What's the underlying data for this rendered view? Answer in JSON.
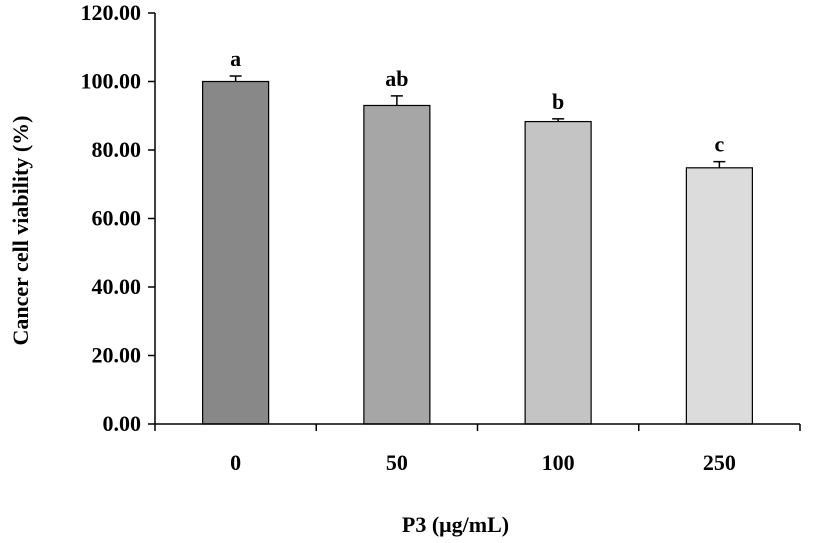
{
  "chart_data": {
    "type": "bar",
    "categories": [
      "0",
      "50",
      "100",
      "250"
    ],
    "values": [
      100.0,
      93.0,
      88.3,
      74.8
    ],
    "errors": [
      1.6,
      2.8,
      0.8,
      1.8
    ],
    "significance_labels": [
      "a",
      "ab",
      "b",
      "c"
    ],
    "xlabel": "P3 (μg/mL)",
    "ylabel": "Cancer cell viability (%)",
    "ylim": [
      0,
      120
    ],
    "yticks": [
      "0.00",
      "20.00",
      "40.00",
      "60.00",
      "80.00",
      "100.00",
      "120.00"
    ],
    "grid": false,
    "legend": "none",
    "colors": [
      "#888888",
      "#a6a6a6",
      "#c4c4c4",
      "#dcdcdc"
    ],
    "edge_color": "#000000"
  }
}
